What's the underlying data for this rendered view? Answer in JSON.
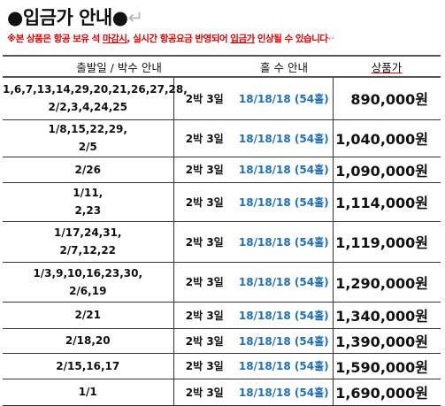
{
  "title": {
    "bullet_left": "●",
    "text": "입금가 안내",
    "bullet_right": "●",
    "mark": "↵"
  },
  "notice": {
    "part1": "※본 상품은 항공 보유 석 ",
    "part2": "마감시",
    "part3": ", 실시간 항공요금 반영되어 ",
    "part4": "입금가",
    "part5": " 인상될 수 있습니다",
    "mark": "↵"
  },
  "table": {
    "headers": {
      "date": "출발일 / 박수 안내",
      "rounds": "홀 수 안내",
      "price": "상품가"
    },
    "rows": [
      {
        "dates_line1": "1,6,7,13,14,29,20,21,26,27,28,",
        "dates_line2": "2/2,3,4,24,25",
        "nights": "2박 3일",
        "rounds": "18/18/18 (54홀)",
        "price": "890,000원"
      },
      {
        "dates_line1": "1/8,15,22,29,",
        "dates_line2": "2/5",
        "nights": "2박 3일",
        "rounds": "18/18/18 (54홀)",
        "price": "1,040,000원"
      },
      {
        "dates_line1": "2/26",
        "dates_line2": "",
        "nights": "2박 3일",
        "rounds": "18/18/18 (54홀)",
        "price": "1,090,000원"
      },
      {
        "dates_line1": "1/11,",
        "dates_line2": "2,23",
        "nights": "2박 3일",
        "rounds": "18/18/18 (54홀)",
        "price": "1,114,000원"
      },
      {
        "dates_line1": "1/17,24,31,",
        "dates_line2": "2/7,12,22",
        "nights": "2박 3일",
        "rounds": "18/18/18 (54홀)",
        "price": "1,119,000원"
      },
      {
        "dates_line1": "1/3,9,10,16,23,30,",
        "dates_line2": "2/6,19",
        "nights": "2박 3일",
        "rounds": "18/18/18 (54홀)",
        "price": "1,290,000원"
      },
      {
        "dates_line1": "2/21",
        "dates_line2": "",
        "nights": "2박 3일",
        "rounds": "18/18/18 (54홀)",
        "price": "1,340,000원"
      },
      {
        "dates_line1": "2/18,20",
        "dates_line2": "",
        "nights": "2박 3일",
        "rounds": "18/18/18 (54홀)",
        "price": "1,390,000원"
      },
      {
        "dates_line1": "2/15,16,17",
        "dates_line2": "",
        "nights": "2박 3일",
        "rounds": "18/18/18 (54홀)",
        "price": "1,590,000원"
      },
      {
        "dates_line1": "1/1",
        "dates_line2": "",
        "nights": "2박 3일",
        "rounds": "18/18/18 (54홀)",
        "price": "1,690,000원"
      }
    ]
  },
  "colors": {
    "notice_red": "#e00000",
    "rounds_blue": "#1f6fb5"
  }
}
